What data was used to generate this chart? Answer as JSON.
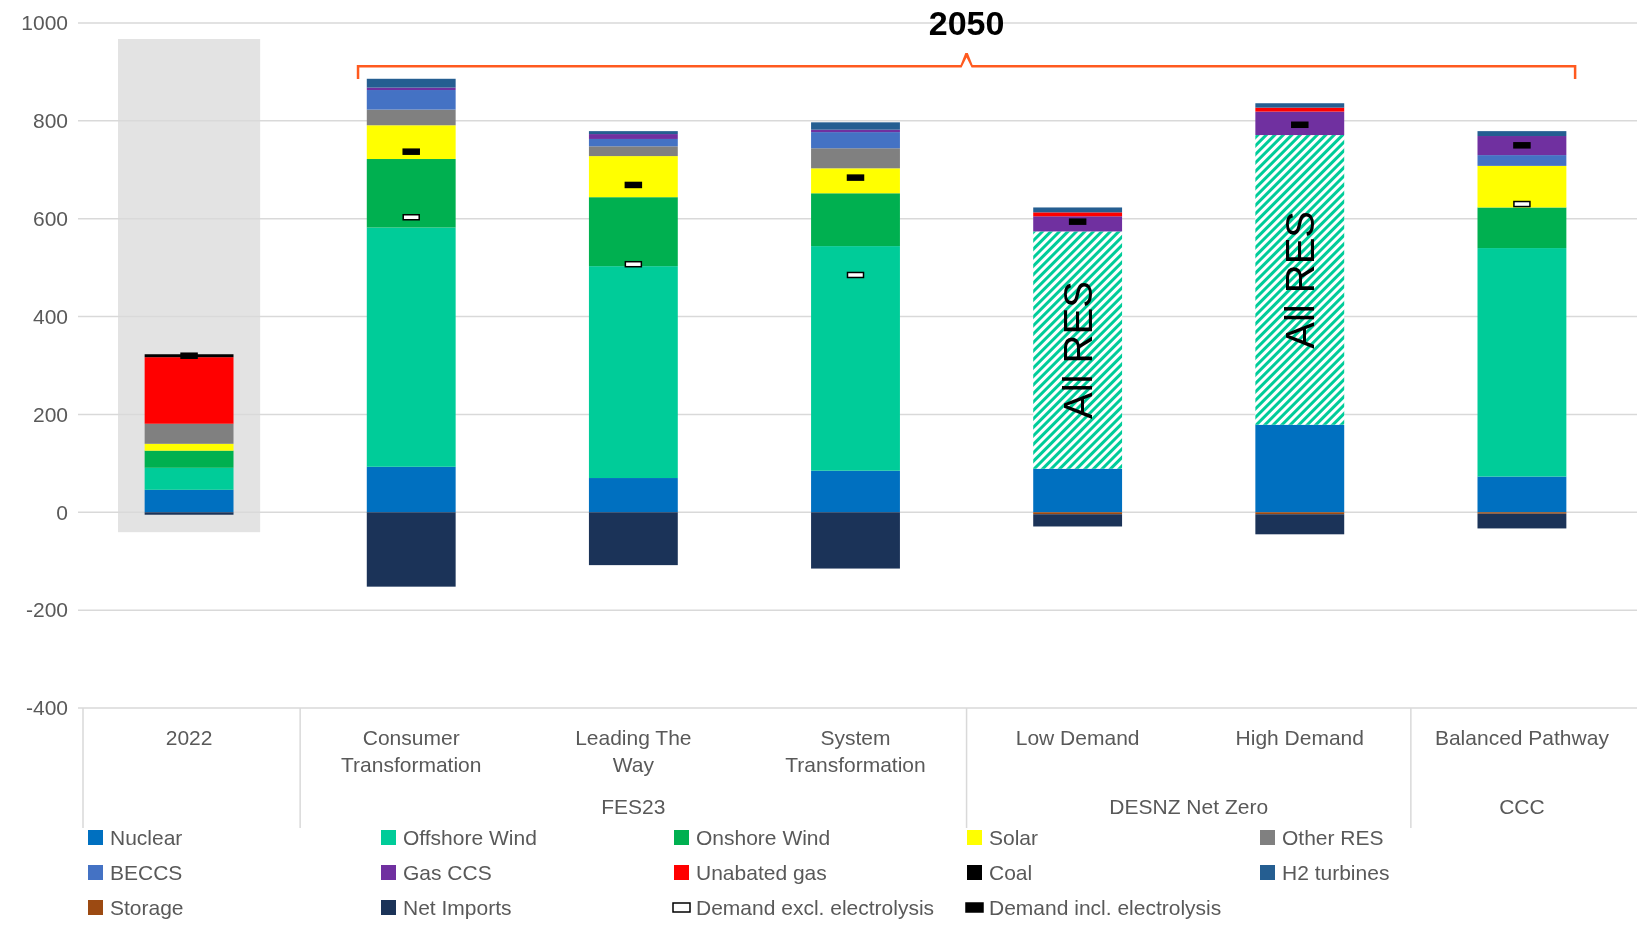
{
  "chart_data": {
    "type": "bar",
    "stacked": true,
    "categories": [
      "2022",
      "Consumer Transformation",
      "Leading The Way",
      "System Transformation",
      "Low Demand",
      "High Demand",
      "Balanced Pathway"
    ],
    "series": [
      {
        "name": "Nuclear",
        "color": "#0070c0",
        "values": [
          46,
          93,
          70,
          85,
          89,
          179,
          73
        ]
      },
      {
        "name": "Offshore Wind",
        "color": "#00cc99",
        "values": [
          45,
          489,
          433,
          459,
          485,
          592,
          467
        ],
        "value_labels": [
          null,
          null,
          null,
          null,
          "All RES",
          "All RES",
          null
        ]
      },
      {
        "name": "Onshore Wind",
        "color": "#00b050",
        "values": [
          35,
          140,
          141,
          108,
          null,
          null,
          83
        ]
      },
      {
        "name": "Solar",
        "color": "#ffff00",
        "values": [
          14,
          69,
          84,
          51,
          null,
          null,
          85
        ]
      },
      {
        "name": "Other RES",
        "color": "#808080",
        "values": [
          41,
          32,
          20,
          41,
          null,
          null,
          null
        ]
      },
      {
        "name": "BECCS",
        "color": "#4472c4",
        "values": [
          null,
          40,
          15,
          33,
          null,
          null,
          22
        ]
      },
      {
        "name": "Gas CCS",
        "color": "#7030a0",
        "values": [
          null,
          5,
          10,
          5,
          31,
          48,
          39
        ]
      },
      {
        "name": "Unabated gas",
        "color": "#ff0000",
        "values": [
          136,
          null,
          null,
          null,
          8,
          8,
          null
        ]
      },
      {
        "name": "Coal",
        "color": "#000000",
        "values": [
          6,
          null,
          null,
          null,
          null,
          null,
          null
        ]
      },
      {
        "name": "H2 turbines",
        "color": "#255e91",
        "values": [
          null,
          18,
          6,
          15,
          10,
          9,
          10
        ]
      },
      {
        "name": "Storage",
        "color": "#9c4a12",
        "values": [
          null,
          null,
          null,
          null,
          -4,
          -4,
          -3
        ]
      },
      {
        "name": "Net Imports",
        "color": "#1b3358",
        "values": [
          -5,
          -152,
          -108,
          -115,
          -25,
          -41,
          -30
        ]
      },
      {
        "name": "Demand excl. electrolysis",
        "type": "scatter",
        "marker": "square",
        "color": "#ffffff",
        "values": [
          null,
          603,
          507,
          485,
          null,
          null,
          630
        ]
      },
      {
        "name": "Demand incl. electrolysis",
        "type": "scatter",
        "marker": "square",
        "color": "#000000",
        "values": [
          320,
          737,
          669,
          684,
          594,
          792,
          750
        ]
      }
    ],
    "ylim": [
      -400,
      1000
    ],
    "yticks": [
      -400,
      -200,
      0,
      200,
      400,
      600,
      800,
      1000
    ],
    "grid": "y",
    "legend": "bottom",
    "bands": [
      {
        "axis": "x",
        "from": "2022",
        "to": "2022",
        "color": "#e3e3e3"
      }
    ],
    "annotations": [
      "2050",
      "FES23",
      "DESNZ Net Zero",
      "CCC"
    ]
  }
}
